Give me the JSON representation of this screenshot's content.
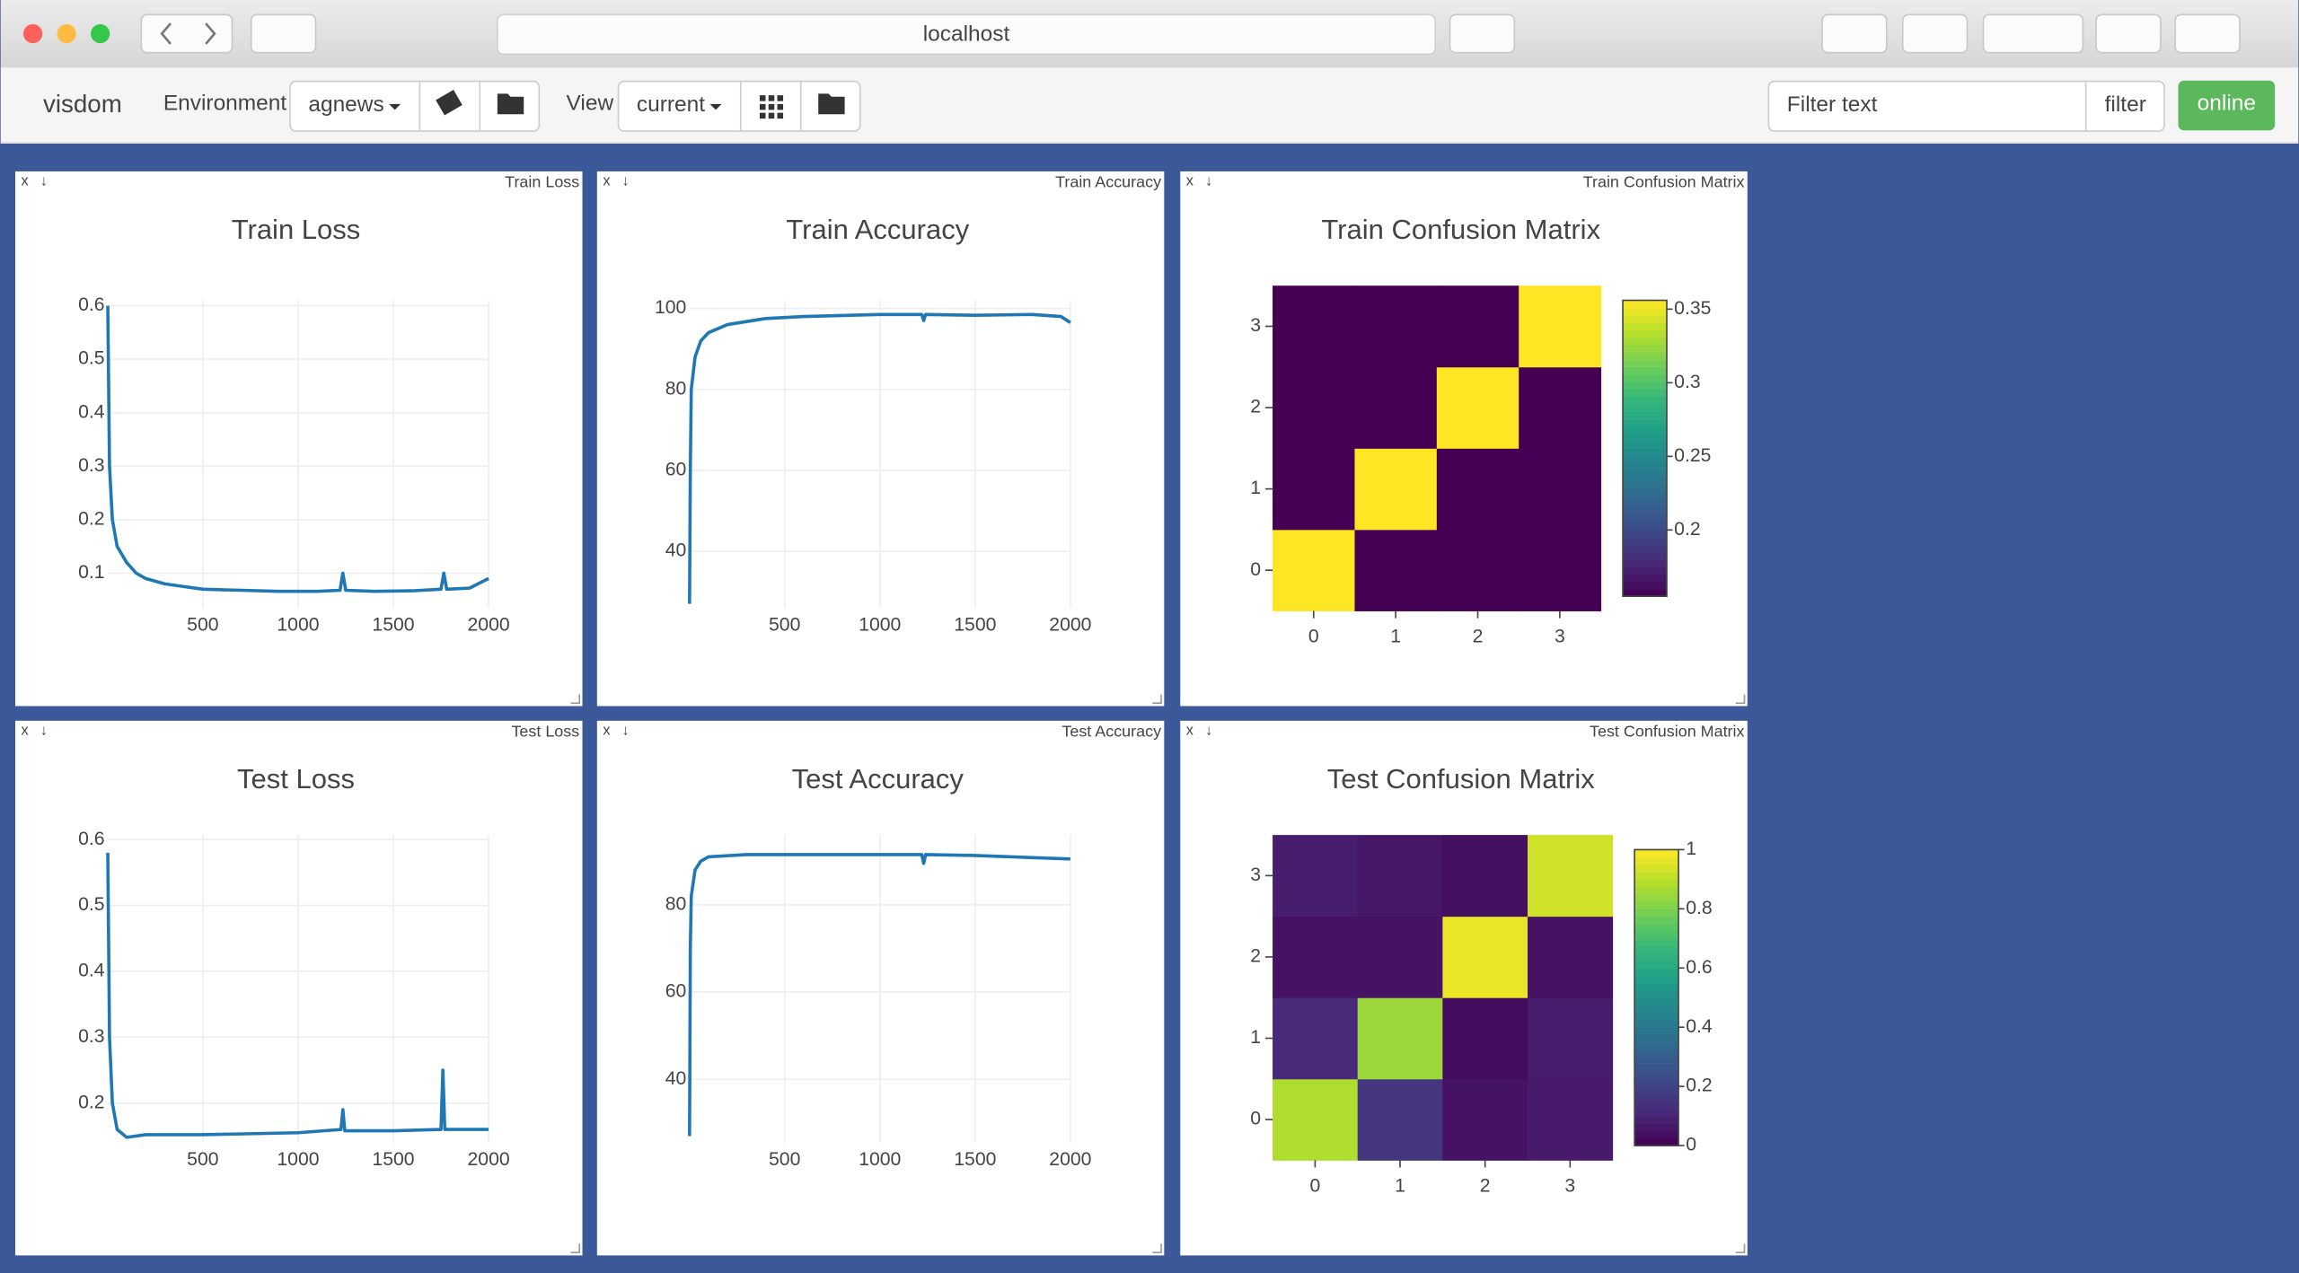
{
  "browser": {
    "url": "localhost"
  },
  "toolbar": {
    "brand": "visdom",
    "environment_label": "Environment",
    "environment": "agnews",
    "view_label": "View",
    "view": "current",
    "filter_placeholder": "Filter text",
    "filter_button": "filter",
    "status": "online"
  },
  "pane_controls": {
    "close": "x",
    "download": "↓"
  },
  "panes": [
    {
      "label": "Train Loss"
    },
    {
      "label": "Train Accuracy"
    },
    {
      "label": "Train Confusion Matrix"
    },
    {
      "label": "Test Loss"
    },
    {
      "label": "Test Accuracy"
    },
    {
      "label": "Test Confusion Matrix"
    }
  ],
  "chart_data": [
    {
      "type": "line",
      "title": "Train Loss",
      "color": "#1f77b4",
      "grid": true,
      "x": [
        1,
        10,
        25,
        50,
        100,
        150,
        200,
        300,
        400,
        500,
        700,
        900,
        1100,
        1220,
        1235,
        1250,
        1400,
        1600,
        1750,
        1765,
        1780,
        1900,
        2000
      ],
      "values": [
        0.6,
        0.3,
        0.2,
        0.15,
        0.12,
        0.1,
        0.09,
        0.08,
        0.075,
        0.07,
        0.068,
        0.066,
        0.066,
        0.068,
        0.1,
        0.068,
        0.066,
        0.067,
        0.07,
        0.1,
        0.07,
        0.072,
        0.09
      ],
      "xlim": [
        0,
        2000
      ],
      "ylim": [
        0.035,
        0.61
      ],
      "xticks": [
        500,
        1000,
        1500,
        2000
      ],
      "yticks": [
        0.1,
        0.2,
        0.3,
        0.4,
        0.5,
        0.6
      ]
    },
    {
      "type": "line",
      "title": "Train Accuracy",
      "color": "#1f77b4",
      "grid": true,
      "x": [
        1,
        5,
        10,
        30,
        60,
        100,
        200,
        400,
        600,
        1000,
        1220,
        1230,
        1240,
        1500,
        1800,
        1950,
        2000
      ],
      "values": [
        27,
        60,
        80,
        88,
        92,
        94,
        96,
        97.5,
        98,
        98.5,
        98.5,
        97,
        98.5,
        98.3,
        98.5,
        98,
        96.5
      ],
      "xlim": [
        0,
        2000
      ],
      "ylim": [
        26,
        102
      ],
      "xticks": [
        500,
        1000,
        1500,
        2000
      ],
      "yticks": [
        40,
        60,
        80,
        100
      ]
    },
    {
      "type": "heatmap",
      "title": "Train Confusion Matrix",
      "colorscale": "Viridis",
      "x": [
        0,
        1,
        2,
        3
      ],
      "y": [
        0,
        1,
        2,
        3
      ],
      "z": [
        [
          0.356,
          0.155,
          0.155,
          0.155
        ],
        [
          0.155,
          0.356,
          0.155,
          0.155
        ],
        [
          0.155,
          0.155,
          0.356,
          0.155
        ],
        [
          0.155,
          0.155,
          0.155,
          0.356
        ]
      ],
      "zlim": [
        0.155,
        0.356
      ],
      "zticks": [
        0.2,
        0.25,
        0.3,
        0.35
      ]
    },
    {
      "type": "line",
      "title": "Test Loss",
      "color": "#1f77b4",
      "grid": true,
      "x": [
        1,
        10,
        25,
        50,
        100,
        200,
        500,
        1000,
        1225,
        1235,
        1245,
        1500,
        1750,
        1760,
        1770,
        2000
      ],
      "values": [
        0.58,
        0.3,
        0.2,
        0.16,
        0.148,
        0.152,
        0.152,
        0.155,
        0.16,
        0.19,
        0.158,
        0.158,
        0.16,
        0.25,
        0.16,
        0.16
      ],
      "xlim": [
        0,
        2000
      ],
      "ylim": [
        0.14,
        0.607
      ],
      "xticks": [
        500,
        1000,
        1500,
        2000
      ],
      "yticks": [
        0.2,
        0.3,
        0.4,
        0.5,
        0.6
      ]
    },
    {
      "type": "line",
      "title": "Test Accuracy",
      "color": "#1f77b4",
      "grid": true,
      "x": [
        1,
        5,
        10,
        30,
        60,
        100,
        300,
        1000,
        1220,
        1230,
        1240,
        1500,
        2000
      ],
      "values": [
        27,
        70,
        82,
        88,
        90,
        91,
        91.5,
        91.5,
        91.5,
        89.5,
        91.5,
        91.3,
        90.5
      ],
      "xlim": [
        0,
        2000
      ],
      "ylim": [
        25.5,
        96
      ],
      "xticks": [
        500,
        1000,
        1500,
        2000
      ],
      "yticks": [
        40,
        60,
        80
      ]
    },
    {
      "type": "heatmap",
      "title": "Test Confusion Matrix",
      "colorscale": "Viridis",
      "x": [
        0,
        1,
        2,
        3
      ],
      "y": [
        0,
        1,
        2,
        3
      ],
      "z": [
        [
          0.88,
          0.15,
          0.05,
          0.07
        ],
        [
          0.12,
          0.85,
          0.03,
          0.08
        ],
        [
          0.05,
          0.05,
          0.97,
          0.05
        ],
        [
          0.08,
          0.06,
          0.04,
          0.93
        ]
      ],
      "zlim": [
        0,
        1
      ],
      "zticks": [
        0,
        0.2,
        0.4,
        0.6,
        0.8,
        1
      ]
    }
  ]
}
